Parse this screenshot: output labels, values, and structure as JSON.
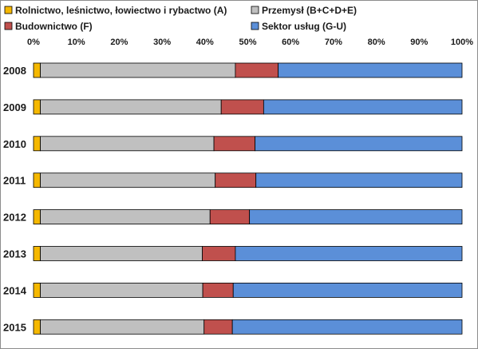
{
  "chart_data": {
    "type": "bar",
    "orientation": "horizontal",
    "stacked": true,
    "percent_stacked": true,
    "categories": [
      "2008",
      "2009",
      "2010",
      "2011",
      "2012",
      "2013",
      "2014",
      "2015"
    ],
    "series": [
      {
        "name": "Rolnictwo, leśnictwo, łowiectwo i rybactwo (A)",
        "color": "#f5b800",
        "values": [
          1.6,
          1.6,
          1.6,
          1.6,
          1.6,
          1.6,
          1.6,
          1.6
        ]
      },
      {
        "name": "Przemysł (B+C+D+E)",
        "color": "#c0c0c0",
        "values": [
          45.5,
          42.2,
          40.5,
          40.8,
          39.6,
          37.8,
          37.9,
          38.2
        ]
      },
      {
        "name": "Budownictwo (F)",
        "color": "#c0504d",
        "values": [
          10.0,
          9.9,
          9.6,
          9.5,
          9.2,
          7.7,
          7.1,
          6.6
        ]
      },
      {
        "name": "Sektor usług (G-U)",
        "color": "#5b8fd8",
        "values": [
          42.9,
          46.3,
          48.3,
          48.1,
          49.6,
          52.9,
          53.4,
          53.6
        ]
      }
    ],
    "x_ticks": [
      "0%",
      "10%",
      "20%",
      "30%",
      "40%",
      "50%",
      "60%",
      "70%",
      "80%",
      "90%",
      "100%"
    ],
    "xlim": [
      0,
      100
    ],
    "grid": false,
    "legend_position": "top"
  }
}
